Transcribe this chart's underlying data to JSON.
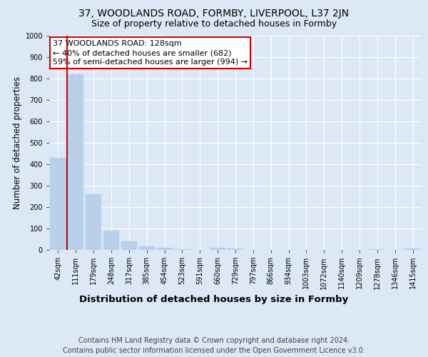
{
  "title1": "37, WOODLANDS ROAD, FORMBY, LIVERPOOL, L37 2JN",
  "title2": "Size of property relative to detached houses in Formby",
  "xlabel": "Distribution of detached houses by size in Formby",
  "ylabel": "Number of detached properties",
  "footer1": "Contains HM Land Registry data © Crown copyright and database right 2024.",
  "footer2": "Contains public sector information licensed under the Open Government Licence v3.0.",
  "annotation_line1": "37 WOODLANDS ROAD: 128sqm",
  "annotation_line2": "← 40% of detached houses are smaller (682)",
  "annotation_line3": "59% of semi-detached houses are larger (994) →",
  "bar_labels": [
    "42sqm",
    "111sqm",
    "179sqm",
    "248sqm",
    "317sqm",
    "385sqm",
    "454sqm",
    "523sqm",
    "591sqm",
    "660sqm",
    "729sqm",
    "797sqm",
    "866sqm",
    "934sqm",
    "1003sqm",
    "1072sqm",
    "1140sqm",
    "1209sqm",
    "1278sqm",
    "1346sqm",
    "1415sqm"
  ],
  "bar_values": [
    430,
    820,
    260,
    90,
    40,
    18,
    10,
    5,
    0,
    10,
    8,
    0,
    0,
    0,
    0,
    0,
    0,
    0,
    5,
    0,
    8
  ],
  "bar_color": "#b8d0ea",
  "bar_edge_color": "#b8d0ea",
  "highlight_color": "#cc0000",
  "background_color": "#dce8f5",
  "plot_bg_color": "#dce8f5",
  "grid_color": "#ffffff",
  "ylim": [
    0,
    1000
  ],
  "yticks": [
    0,
    100,
    200,
    300,
    400,
    500,
    600,
    700,
    800,
    900,
    1000
  ],
  "title1_fontsize": 10,
  "title2_fontsize": 9,
  "xlabel_fontsize": 9.5,
  "ylabel_fontsize": 8.5,
  "tick_fontsize": 7,
  "annotation_fontsize": 8,
  "footer_fontsize": 7
}
